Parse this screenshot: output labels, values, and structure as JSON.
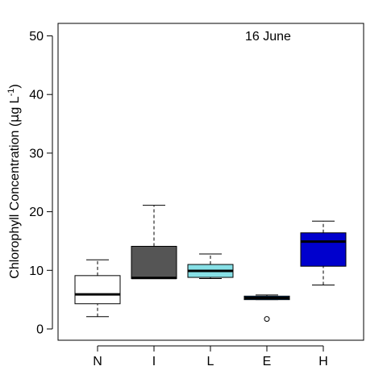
{
  "chart_data": {
    "type": "box",
    "annotation": "16 June",
    "ylabel": {
      "main": "Chlorophyll Concentration (",
      "mu": "μ",
      "unit": "g L",
      "exp": "-1",
      "close": ")"
    },
    "ylim": [
      -2,
      52
    ],
    "yticks": [
      0,
      10,
      20,
      30,
      40,
      50
    ],
    "grid": false,
    "categories": [
      "N",
      "I",
      "L",
      "E",
      "H"
    ],
    "boxes": [
      {
        "label": "N",
        "min": 2.1,
        "q1": 4.3,
        "median": 5.9,
        "q3": 9.1,
        "max": 11.8,
        "outliers": [],
        "fill": "#ffffff"
      },
      {
        "label": "I",
        "min": 8.6,
        "q1": 8.6,
        "median": 8.7,
        "q3": 14.1,
        "max": 21.1,
        "outliers": [],
        "fill": "#555555"
      },
      {
        "label": "L",
        "min": 8.6,
        "q1": 8.8,
        "median": 9.9,
        "q3": 11.0,
        "max": 12.8,
        "outliers": [],
        "fill": "#87e0e6"
      },
      {
        "label": "E",
        "min": 5.0,
        "q1": 5.0,
        "median": 5.3,
        "q3": 5.6,
        "max": 5.8,
        "outliers": [
          1.7
        ],
        "fill": "#1e90ff"
      },
      {
        "label": "H",
        "min": 7.5,
        "q1": 10.7,
        "median": 14.9,
        "q3": 16.4,
        "max": 18.4,
        "outliers": [],
        "fill": "#0000cd"
      }
    ]
  }
}
